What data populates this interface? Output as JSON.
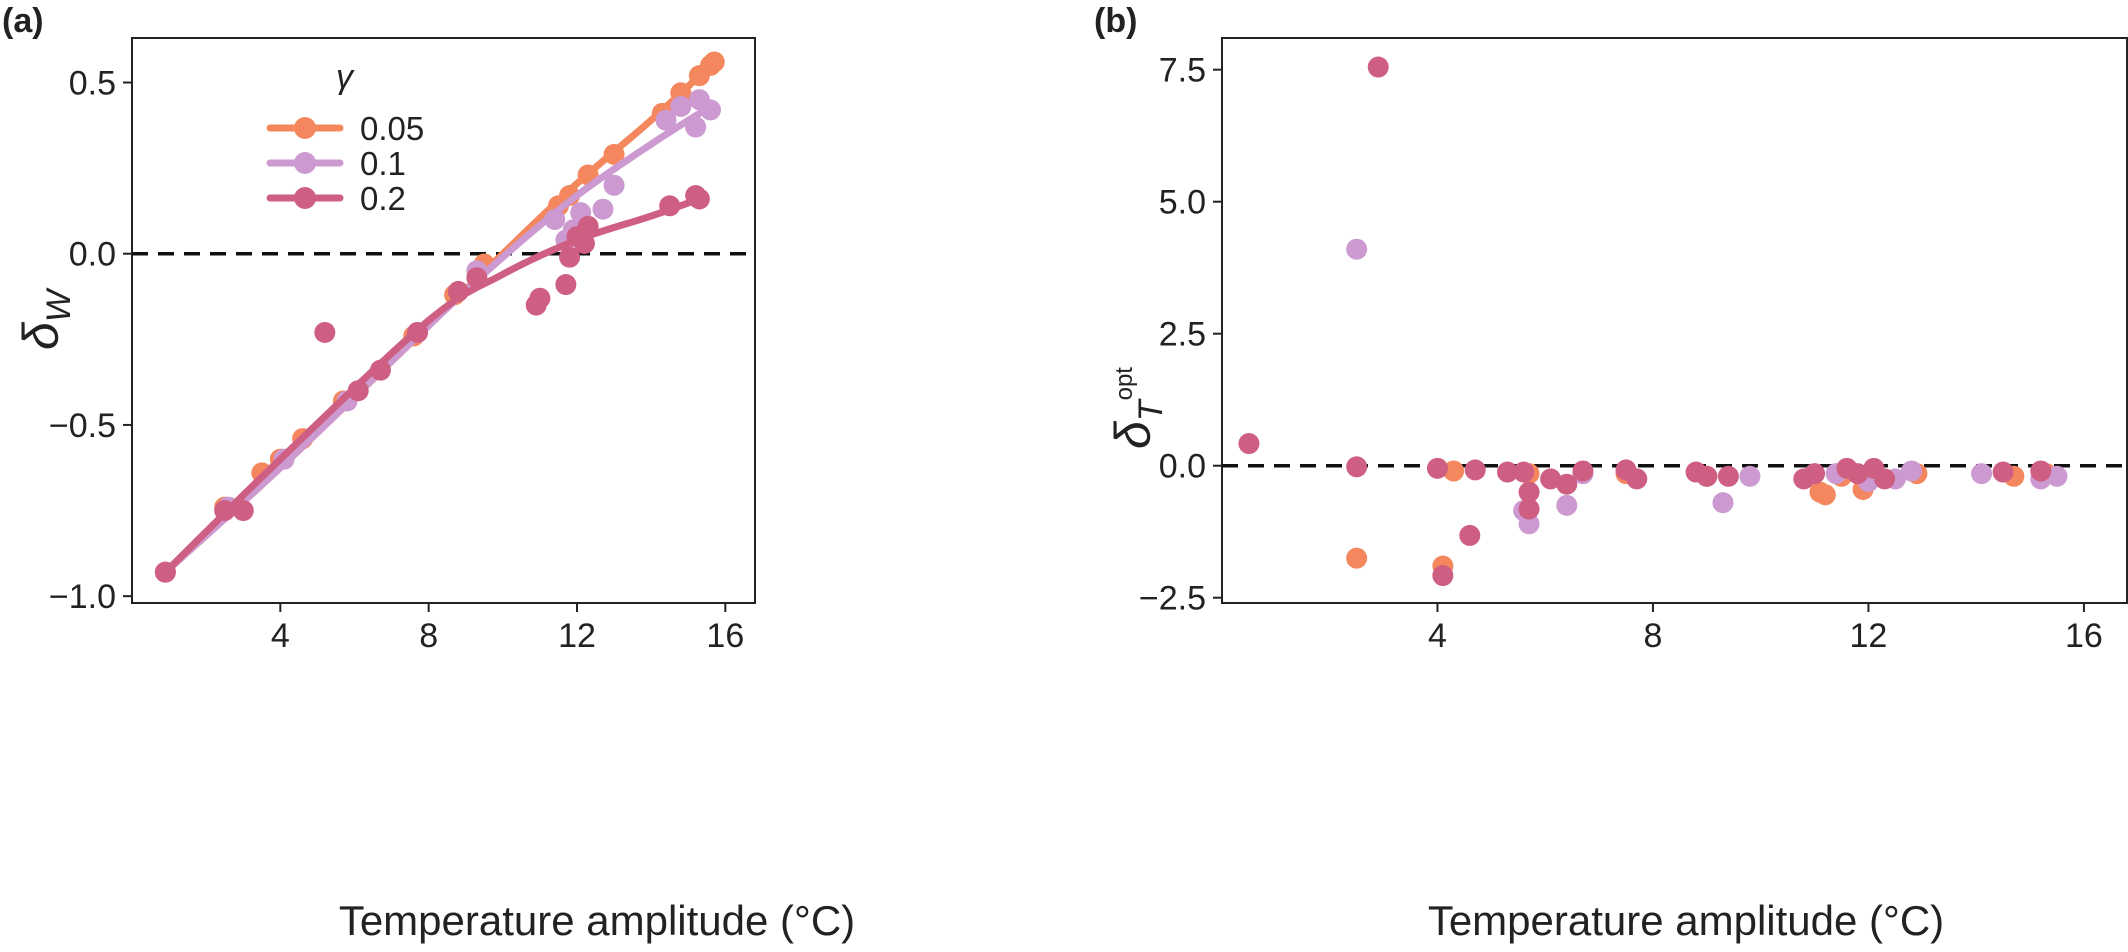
{
  "panels": [
    {
      "tag": "(a)",
      "chart_data": {
        "type": "scatter",
        "xlabel": "Temperature amplitude (°C)",
        "ylabel": "δ_W",
        "ylabel_main": "δ",
        "ylabel_sub": "W",
        "xlim": [
          0,
          16.8
        ],
        "ylim": [
          -1.02,
          0.63
        ],
        "xticks": [
          4,
          8,
          12,
          16
        ],
        "yticks": [
          -1.0,
          -0.5,
          0.0,
          0.5
        ],
        "ytick_labels": [
          "−1.0",
          "−0.5",
          "0.0",
          "0.5"
        ],
        "reference_line": {
          "y": 0,
          "style": "dashed"
        },
        "grid": false,
        "legend": {
          "title": "γ",
          "position": "top-left",
          "labels": [
            "0.05",
            "0.1",
            "0.2"
          ]
        },
        "series": [
          {
            "name": "0.05",
            "color": "#F4875D",
            "points": [
              [
                0.9,
                -0.93
              ],
              [
                2.5,
                -0.74
              ],
              [
                3.5,
                -0.64
              ],
              [
                4.6,
                -0.54
              ],
              [
                5.7,
                -0.43
              ],
              [
                7.6,
                -0.24
              ],
              [
                8.7,
                -0.12
              ],
              [
                9.5,
                -0.03
              ],
              [
                11.5,
                0.14
              ],
              [
                11.8,
                0.17
              ],
              [
                12.3,
                0.23
              ],
              [
                13.0,
                0.29
              ],
              [
                14.3,
                0.41
              ],
              [
                14.8,
                0.47
              ],
              [
                15.3,
                0.52
              ],
              [
                15.6,
                0.55
              ],
              [
                15.7,
                0.56
              ],
              [
                4.0,
                -0.6
              ]
            ],
            "curve": [
              [
                0.9,
                -0.93
              ],
              [
                4,
                -0.625
              ],
              [
                8,
                -0.21
              ],
              [
                10,
                0
              ],
              [
                12,
                0.205
              ],
              [
                14,
                0.39
              ],
              [
                15.7,
                0.56
              ]
            ]
          },
          {
            "name": "0.1",
            "color": "#CC99D1",
            "points": [
              [
                0.9,
                -0.93
              ],
              [
                2.6,
                -0.74
              ],
              [
                4.1,
                -0.6
              ],
              [
                5.8,
                -0.43
              ],
              [
                7.7,
                -0.23
              ],
              [
                9.3,
                -0.05
              ],
              [
                11.4,
                0.1
              ],
              [
                11.7,
                0.04
              ],
              [
                11.9,
                0.07
              ],
              [
                12.1,
                0.12
              ],
              [
                12.7,
                0.13
              ],
              [
                13.0,
                0.2
              ],
              [
                14.4,
                0.39
              ],
              [
                14.8,
                0.43
              ],
              [
                15.2,
                0.37
              ],
              [
                15.3,
                0.45
              ],
              [
                15.6,
                0.42
              ]
            ],
            "curve": [
              [
                0.9,
                -0.93
              ],
              [
                4,
                -0.625
              ],
              [
                8,
                -0.21
              ],
              [
                10,
                -0.01
              ],
              [
                12,
                0.17
              ],
              [
                14,
                0.32
              ],
              [
                15.6,
                0.43
              ]
            ]
          },
          {
            "name": "0.2",
            "color": "#CE5F82",
            "points": [
              [
                0.9,
                -0.93
              ],
              [
                2.5,
                -0.75
              ],
              [
                3.0,
                -0.75
              ],
              [
                5.2,
                -0.23
              ],
              [
                6.1,
                -0.4
              ],
              [
                6.7,
                -0.34
              ],
              [
                7.7,
                -0.23
              ],
              [
                8.8,
                -0.11
              ],
              [
                9.3,
                -0.07
              ],
              [
                10.9,
                -0.15
              ],
              [
                11.0,
                -0.13
              ],
              [
                11.7,
                -0.09
              ],
              [
                11.8,
                -0.01
              ],
              [
                12.0,
                0.05
              ],
              [
                12.2,
                0.03
              ],
              [
                12.3,
                0.08
              ],
              [
                14.5,
                0.14
              ],
              [
                15.2,
                0.17
              ],
              [
                15.3,
                0.16
              ]
            ],
            "curve": [
              [
                0.9,
                -0.93
              ],
              [
                4,
                -0.6
              ],
              [
                8,
                -0.195
              ],
              [
                10,
                -0.06
              ],
              [
                12,
                0.04
              ],
              [
                14,
                0.11
              ],
              [
                15.3,
                0.16
              ]
            ]
          }
        ]
      }
    },
    {
      "tag": "(b)",
      "chart_data": {
        "type": "scatter",
        "xlabel": "Temperature amplitude (°C)",
        "ylabel": "δ_T^opt",
        "ylabel_main": "δ",
        "ylabel_sub": "T",
        "ylabel_sup": "opt",
        "xlim": [
          0,
          16.8
        ],
        "ylim": [
          -2.6,
          8.1
        ],
        "xticks": [
          4,
          8,
          12,
          16
        ],
        "yticks": [
          -2.5,
          0.0,
          2.5,
          5.0,
          7.5
        ],
        "ytick_labels": [
          "−2.5",
          "0.0",
          "2.5",
          "5.0",
          "7.5"
        ],
        "reference_line": {
          "y": 0,
          "style": "dashed"
        },
        "grid": false,
        "series": [
          {
            "name": "0.05",
            "color": "#F4875D",
            "points": [
              [
                2.5,
                -1.75
              ],
              [
                4.1,
                -1.9
              ],
              [
                4.3,
                -0.1
              ],
              [
                5.7,
                -0.15
              ],
              [
                7.5,
                -0.15
              ],
              [
                9.0,
                -0.2
              ],
              [
                11.1,
                -0.5
              ],
              [
                11.2,
                -0.55
              ],
              [
                11.5,
                -0.2
              ],
              [
                11.9,
                -0.45
              ],
              [
                12.9,
                -0.15
              ],
              [
                14.7,
                -0.2
              ],
              [
                15.3,
                -0.15
              ]
            ]
          },
          {
            "name": "0.1",
            "color": "#CC99D1",
            "points": [
              [
                2.5,
                4.1
              ],
              [
                5.6,
                -0.85
              ],
              [
                5.7,
                -1.1
              ],
              [
                6.4,
                -0.75
              ],
              [
                6.7,
                -0.15
              ],
              [
                9.3,
                -0.7
              ],
              [
                9.8,
                -0.2
              ],
              [
                11.4,
                -0.15
              ],
              [
                12.0,
                -0.3
              ],
              [
                12.5,
                -0.25
              ],
              [
                14.1,
                -0.15
              ],
              [
                15.2,
                -0.25
              ],
              [
                15.5,
                -0.2
              ],
              [
                12.8,
                -0.1
              ]
            ]
          },
          {
            "name": "0.2",
            "color": "#CE5F82",
            "points": [
              [
                0.5,
                0.42
              ],
              [
                2.5,
                -0.02
              ],
              [
                2.9,
                7.55
              ],
              [
                4.0,
                -0.05
              ],
              [
                4.1,
                -2.08
              ],
              [
                4.6,
                -1.32
              ],
              [
                4.7,
                -0.08
              ],
              [
                5.3,
                -0.12
              ],
              [
                5.6,
                -0.12
              ],
              [
                5.7,
                -0.5
              ],
              [
                5.7,
                -0.82
              ],
              [
                6.1,
                -0.25
              ],
              [
                6.4,
                -0.35
              ],
              [
                6.7,
                -0.1
              ],
              [
                7.5,
                -0.08
              ],
              [
                7.7,
                -0.25
              ],
              [
                8.8,
                -0.12
              ],
              [
                9.0,
                -0.2
              ],
              [
                9.4,
                -0.2
              ],
              [
                10.8,
                -0.25
              ],
              [
                11.0,
                -0.15
              ],
              [
                11.6,
                -0.05
              ],
              [
                11.8,
                -0.15
              ],
              [
                12.1,
                -0.05
              ],
              [
                12.3,
                -0.25
              ],
              [
                14.5,
                -0.12
              ],
              [
                15.2,
                -0.1
              ]
            ]
          }
        ]
      }
    }
  ]
}
